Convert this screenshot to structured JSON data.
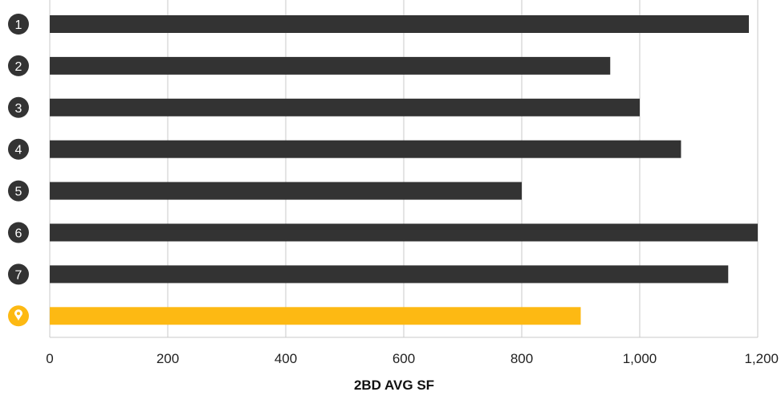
{
  "chart_data": {
    "type": "bar",
    "orientation": "horizontal",
    "categories": [
      "1",
      "2",
      "3",
      "4",
      "5",
      "6",
      "7",
      "pin-icon"
    ],
    "values": [
      1185,
      950,
      1000,
      1070,
      800,
      1200,
      1150,
      900
    ],
    "bar_colors": [
      "#333333",
      "#333333",
      "#333333",
      "#333333",
      "#333333",
      "#333333",
      "#333333",
      "#FDB913"
    ],
    "badge_colors": [
      "#333333",
      "#333333",
      "#333333",
      "#333333",
      "#333333",
      "#333333",
      "#333333",
      "#FDB913"
    ],
    "highlight_icon": "map-pin-icon",
    "xlim": [
      0,
      1200
    ],
    "xticks": [
      0,
      200,
      400,
      600,
      800,
      1000,
      1200
    ],
    "xtick_labels": [
      "0",
      "200",
      "400",
      "600",
      "800",
      "1,000",
      "1,200"
    ],
    "xlabel": "2BD AVG SF",
    "grid": "vertical",
    "legend": "none"
  }
}
